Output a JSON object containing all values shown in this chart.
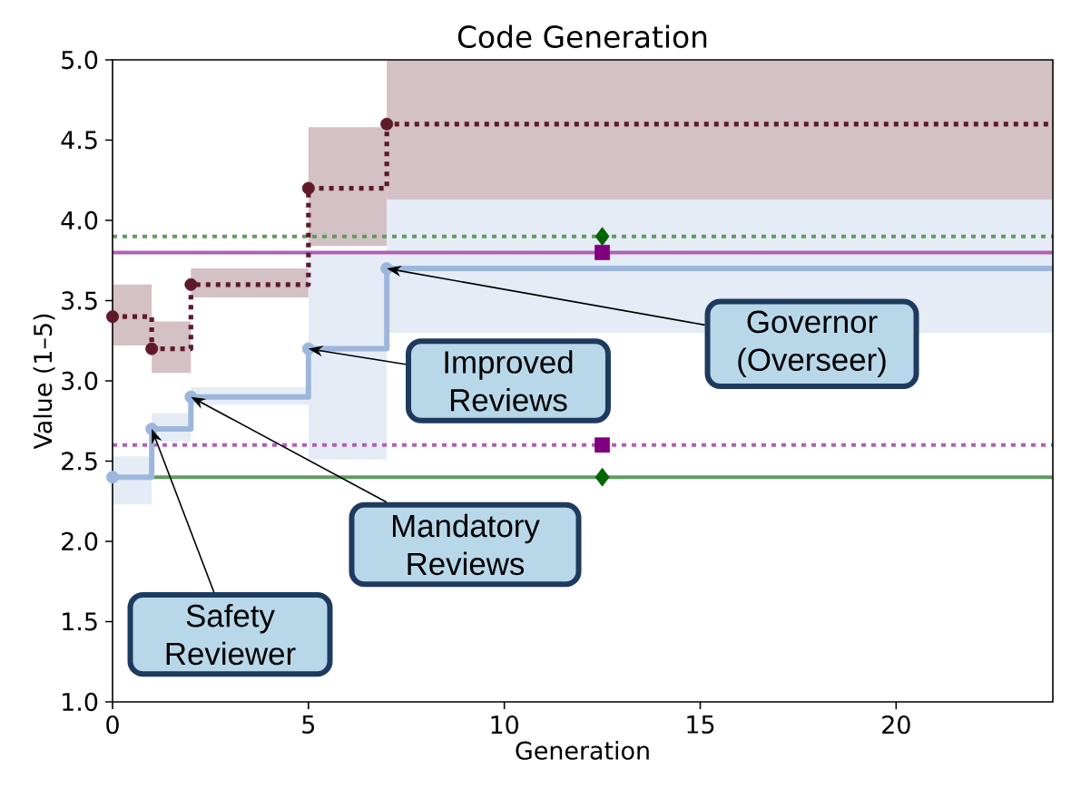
{
  "chart_data": {
    "type": "step",
    "title": "Code Generation",
    "xlabel": "Generation",
    "ylabel": "Value (1–5)",
    "xlim": [
      0,
      24
    ],
    "ylim": [
      1,
      5
    ],
    "xticks": [
      0,
      5,
      10,
      15,
      20
    ],
    "yticks": [
      {
        "value": 1,
        "label": "1.0"
      },
      {
        "value": 1.5,
        "label": "1.5"
      },
      {
        "value": 2,
        "label": "2.0"
      },
      {
        "value": 2.5,
        "label": "2.5"
      },
      {
        "value": 3,
        "label": "3.0"
      },
      {
        "value": 3.5,
        "label": "3.5"
      },
      {
        "value": 4,
        "label": "4.0"
      },
      {
        "value": 4.5,
        "label": "4.5"
      },
      {
        "value": 5,
        "label": "5.0"
      }
    ],
    "series": [
      {
        "color": "#5e1a2a",
        "line_style": "dotted",
        "marker": "circle",
        "x": [
          0,
          1,
          2,
          5,
          7,
          24
        ],
        "values": [
          3.4,
          3.2,
          3.6,
          4.2,
          4.6,
          4.6
        ],
        "lower": [
          3.22,
          3.05,
          3.52,
          3.84,
          4.13,
          4.13
        ],
        "upper": [
          3.6,
          3.37,
          3.7,
          4.58,
          5.0,
          5.0
        ]
      },
      {
        "color": "#9db7dc",
        "line_style": "solid",
        "marker": "circle",
        "x": [
          0,
          1,
          2,
          5,
          7,
          24
        ],
        "values": [
          2.4,
          2.7,
          2.9,
          3.2,
          3.7,
          3.7
        ],
        "lower": [
          2.23,
          2.62,
          2.85,
          2.51,
          3.3,
          3.3
        ],
        "upper": [
          2.53,
          2.8,
          2.96,
          3.79,
          4.13,
          4.13
        ]
      },
      {
        "type": "scatter",
        "color": "#006400",
        "marker": "diamond",
        "x": [
          12.5,
          12.5
        ],
        "values": [
          3.9,
          2.4
        ]
      },
      {
        "type": "scatter",
        "color": "#800080",
        "marker": "square",
        "x": [
          12.5,
          12.5
        ],
        "values": [
          3.8,
          2.6
        ]
      }
    ],
    "ref_lines": [
      {
        "axis": "y",
        "value": 2.4,
        "color": "#5f9b5f",
        "line_style": "solid"
      },
      {
        "axis": "y",
        "value": 3.9,
        "color": "#5f9b5f",
        "line_style": "dotted"
      },
      {
        "axis": "y",
        "value": 3.8,
        "color": "#b060b8",
        "line_style": "solid"
      },
      {
        "axis": "y",
        "value": 2.6,
        "color": "#b060b8",
        "line_style": "dotted"
      }
    ],
    "annotations": [
      {
        "text": "Safety Reviewer",
        "x": 1,
        "y": 2.7
      },
      {
        "text": "Mandatory Reviews",
        "x": 2,
        "y": 2.9
      },
      {
        "text": "Improved Reviews",
        "x": 5,
        "y": 3.2
      },
      {
        "text": "Governor (Overseer)",
        "x": 7,
        "y": 3.7
      }
    ]
  }
}
